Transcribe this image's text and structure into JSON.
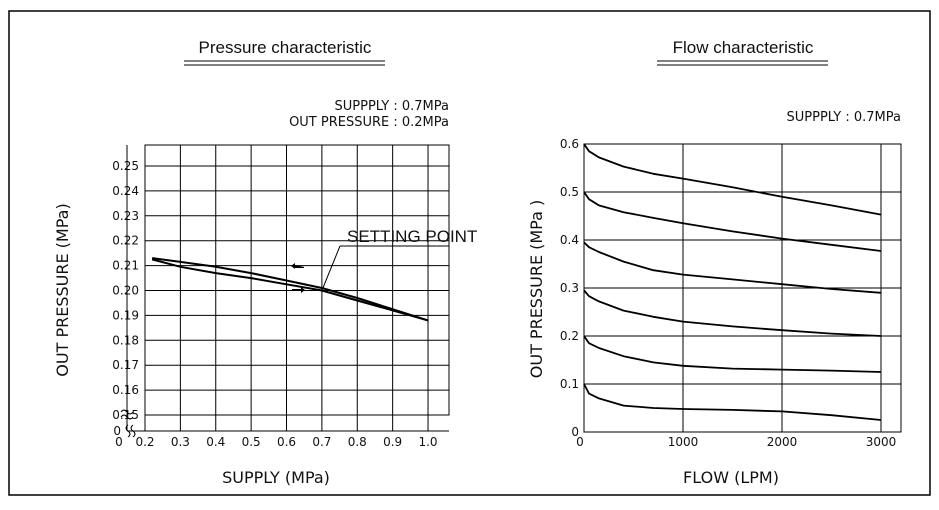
{
  "chart_data": [
    {
      "type": "line",
      "title": "Pressure characteristic",
      "notes": [
        "SUPPPLY : 0.7MPa",
        "OUT PRESSURE : 0.2MPa"
      ],
      "xlabel": "SUPPLY (MPa)",
      "ylabel": "OUT PRESSURE (MPa)",
      "x_ticks": [
        "0",
        "0.2",
        "0.3",
        "0.4",
        "0.5",
        "0.6",
        "0.7",
        "0.8",
        "0.9",
        "1.0"
      ],
      "y_ticks": [
        "0",
        "0.15",
        "0.16",
        "0.17",
        "0.18",
        "0.19",
        "0.20",
        "0.21",
        "0.22",
        "0.23",
        "0.24",
        "0.25"
      ],
      "xlim": [
        0.2,
        1.0
      ],
      "ylim": [
        0.15,
        0.25
      ],
      "axis_breaks": true,
      "grid": true,
      "annotation": {
        "text": "SETTING POINT",
        "x": 0.7,
        "y": 0.2
      },
      "series": [
        {
          "x": [
            0.22,
            0.3,
            0.4,
            0.5,
            0.6,
            0.7,
            0.8,
            0.9,
            1.0
          ],
          "y": [
            0.213,
            0.2115,
            0.2095,
            0.207,
            0.204,
            0.201,
            0.197,
            0.1925,
            0.188
          ]
        },
        {
          "x": [
            0.22,
            0.3,
            0.4,
            0.5,
            0.6,
            0.7,
            0.8,
            0.9,
            1.0
          ],
          "y": [
            0.2125,
            0.2095,
            0.207,
            0.205,
            0.2025,
            0.2,
            0.196,
            0.192,
            0.188
          ]
        }
      ]
    },
    {
      "type": "line",
      "title": "Flow characteristic",
      "notes": [
        "SUPPPLY : 0.7MPa"
      ],
      "xlabel": "FLOW (LPM)",
      "ylabel": "OUT PRESSURE (MPa )",
      "x_ticks": [
        "0",
        "1000",
        "2000",
        "3000"
      ],
      "y_ticks": [
        "0",
        "0.1",
        "0.2",
        "0.3",
        "0.4",
        "0.5",
        "0.6"
      ],
      "xlim": [
        0,
        3200
      ],
      "ylim": [
        0,
        0.6
      ],
      "grid": true,
      "series": [
        {
          "x": [
            0,
            50,
            150,
            400,
            700,
            1000,
            1500,
            2000,
            2500,
            3000
          ],
          "y": [
            0.6,
            0.585,
            0.572,
            0.553,
            0.538,
            0.528,
            0.51,
            0.49,
            0.472,
            0.453
          ]
        },
        {
          "x": [
            0,
            50,
            150,
            400,
            700,
            1000,
            1500,
            2000,
            2500,
            3000
          ],
          "y": [
            0.5,
            0.485,
            0.472,
            0.458,
            0.446,
            0.435,
            0.418,
            0.403,
            0.39,
            0.377
          ]
        },
        {
          "x": [
            0,
            50,
            150,
            400,
            700,
            1000,
            1500,
            2000,
            2500,
            3000
          ],
          "y": [
            0.395,
            0.385,
            0.375,
            0.355,
            0.337,
            0.328,
            0.318,
            0.308,
            0.298,
            0.29
          ]
        },
        {
          "x": [
            0,
            50,
            150,
            400,
            700,
            1000,
            1500,
            2000,
            2500,
            3000
          ],
          "y": [
            0.295,
            0.283,
            0.272,
            0.253,
            0.24,
            0.23,
            0.22,
            0.212,
            0.205,
            0.2
          ]
        },
        {
          "x": [
            0,
            50,
            150,
            400,
            700,
            1000,
            1500,
            2000,
            2500,
            3000
          ],
          "y": [
            0.2,
            0.185,
            0.175,
            0.158,
            0.145,
            0.138,
            0.132,
            0.13,
            0.128,
            0.125
          ]
        },
        {
          "x": [
            0,
            50,
            150,
            400,
            700,
            1000,
            1500,
            2000,
            2500,
            3000
          ],
          "y": [
            0.1,
            0.08,
            0.07,
            0.055,
            0.05,
            0.048,
            0.046,
            0.043,
            0.035,
            0.025
          ]
        }
      ]
    }
  ]
}
